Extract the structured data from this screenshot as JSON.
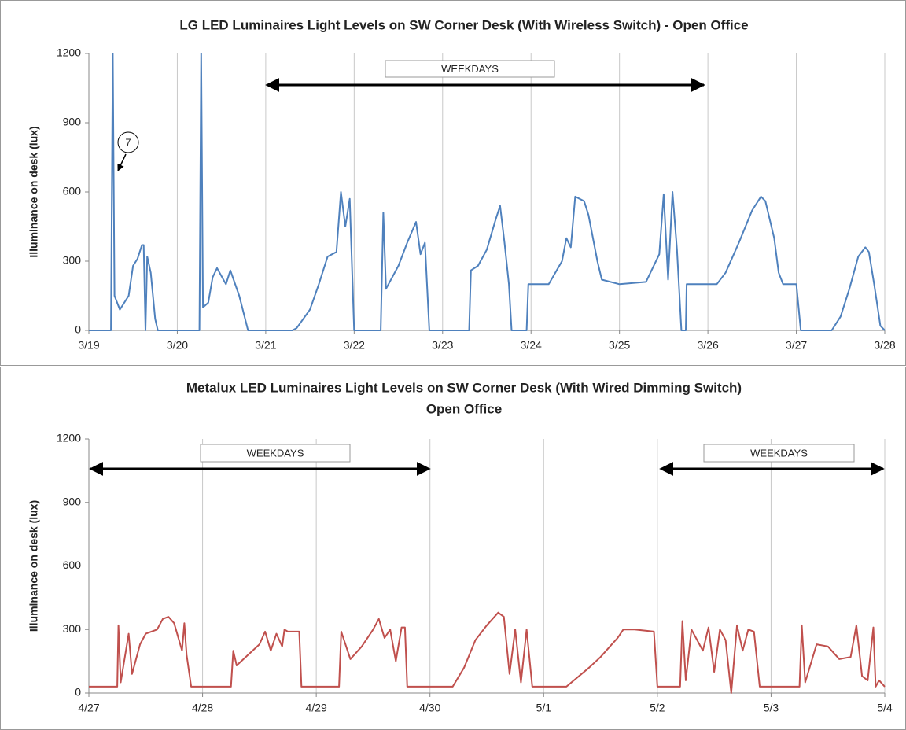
{
  "chart_data": [
    {
      "type": "line",
      "title": [
        "LG LED Luminaires Light Levels on SW Corner Desk (With Wireless Switch) - Open Office"
      ],
      "y_label": "Illuminance on desk (lux)",
      "color": "#4f81bd",
      "x": [
        0,
        0.25,
        0.27,
        0.29,
        0.35,
        0.45,
        0.5,
        0.55,
        0.6,
        0.62,
        0.64,
        0.66,
        0.7,
        0.75,
        0.78,
        1.25,
        1.27,
        1.29,
        1.35,
        1.4,
        1.45,
        1.55,
        1.6,
        1.7,
        1.8,
        2.3,
        2.35,
        2.5,
        2.6,
        2.7,
        2.8,
        2.85,
        2.9,
        2.95,
        3.0,
        3.3,
        3.33,
        3.36,
        3.5,
        3.6,
        3.7,
        3.75,
        3.8,
        3.85,
        4.3,
        4.32,
        4.4,
        4.5,
        4.6,
        4.65,
        4.7,
        4.75,
        4.78,
        4.95,
        4.97,
        5.2,
        5.35,
        5.4,
        5.45,
        5.5,
        5.6,
        5.65,
        5.75,
        5.8,
        6.0,
        6.3,
        6.45,
        6.5,
        6.55,
        6.6,
        6.65,
        6.7,
        6.75,
        6.76,
        7.1,
        7.2,
        7.35,
        7.5,
        7.6,
        7.65,
        7.75,
        7.8,
        7.85,
        8.0,
        8.05,
        8.4,
        8.5,
        8.6,
        8.7,
        8.78,
        8.82,
        8.88,
        8.95,
        9.0
      ],
      "values": [
        0,
        0,
        1200,
        150,
        90,
        150,
        280,
        310,
        370,
        370,
        0,
        320,
        250,
        50,
        0,
        0,
        1200,
        100,
        120,
        230,
        270,
        200,
        260,
        150,
        0,
        0,
        10,
        90,
        200,
        320,
        340,
        600,
        450,
        570,
        0,
        0,
        510,
        180,
        280,
        380,
        470,
        330,
        380,
        0,
        0,
        260,
        280,
        350,
        480,
        540,
        380,
        200,
        0,
        0,
        200,
        200,
        300,
        400,
        360,
        580,
        560,
        500,
        300,
        220,
        200,
        210,
        330,
        590,
        220,
        600,
        350,
        0,
        0,
        200,
        200,
        250,
        380,
        520,
        580,
        560,
        400,
        250,
        200,
        200,
        0,
        0,
        60,
        180,
        320,
        360,
        340,
        200,
        20,
        0
      ],
      "xlim": [
        0,
        9
      ],
      "xticks": [
        {
          "value": 0,
          "label": "3/19"
        },
        {
          "value": 1,
          "label": "3/20"
        },
        {
          "value": 2,
          "label": "3/21"
        },
        {
          "value": 3,
          "label": "3/22"
        },
        {
          "value": 4,
          "label": "3/23"
        },
        {
          "value": 5,
          "label": "3/24"
        },
        {
          "value": 6,
          "label": "3/25"
        },
        {
          "value": 7,
          "label": "3/26"
        },
        {
          "value": 8,
          "label": "3/27"
        },
        {
          "value": 9,
          "label": "3/28"
        }
      ],
      "ylim": [
        0,
        1200
      ],
      "yticks": [
        0,
        300,
        600,
        900,
        1200
      ],
      "annotations": [
        "WEEKDAYS",
        "7"
      ]
    },
    {
      "type": "line",
      "title": [
        "Metalux LED Luminaires Light Levels on SW Corner Desk (With Wired Dimming Switch)",
        "Open Office"
      ],
      "y_label": "Illuminance on desk (lux)",
      "color": "#c0504d",
      "x": [
        0,
        0.25,
        0.26,
        0.28,
        0.35,
        0.38,
        0.45,
        0.5,
        0.6,
        0.65,
        0.7,
        0.75,
        0.82,
        0.84,
        0.86,
        0.9,
        1.0,
        1.25,
        1.27,
        1.3,
        1.4,
        1.5,
        1.55,
        1.6,
        1.65,
        1.7,
        1.72,
        1.75,
        1.85,
        1.87,
        2.2,
        2.22,
        2.3,
        2.4,
        2.5,
        2.55,
        2.6,
        2.65,
        2.7,
        2.75,
        2.78,
        2.8,
        3.0,
        3.2,
        3.3,
        3.4,
        3.5,
        3.6,
        3.65,
        3.7,
        3.75,
        3.8,
        3.85,
        3.9,
        4.2,
        4.4,
        4.5,
        4.6,
        4.65,
        4.7,
        4.8,
        4.97,
        5.0,
        5.2,
        5.22,
        5.25,
        5.3,
        5.4,
        5.45,
        5.5,
        5.55,
        5.6,
        5.65,
        5.7,
        5.75,
        5.8,
        5.85,
        5.9,
        6.25,
        6.27,
        6.3,
        6.4,
        6.5,
        6.6,
        6.7,
        6.75,
        6.8,
        6.85,
        6.9,
        6.92,
        6.95,
        7.0
      ],
      "values": [
        30,
        30,
        320,
        50,
        280,
        90,
        230,
        280,
        300,
        350,
        360,
        330,
        200,
        330,
        180,
        30,
        30,
        30,
        200,
        130,
        180,
        230,
        290,
        200,
        280,
        220,
        300,
        290,
        290,
        30,
        30,
        290,
        160,
        220,
        300,
        350,
        260,
        300,
        150,
        310,
        310,
        30,
        30,
        30,
        120,
        250,
        320,
        380,
        360,
        90,
        300,
        50,
        300,
        30,
        30,
        120,
        170,
        230,
        260,
        300,
        300,
        290,
        30,
        30,
        340,
        60,
        300,
        200,
        310,
        100,
        300,
        250,
        0,
        320,
        200,
        300,
        290,
        30,
        30,
        320,
        50,
        230,
        220,
        160,
        170,
        320,
        80,
        60,
        310,
        30,
        60,
        30
      ],
      "xlim": [
        0,
        7
      ],
      "xticks": [
        {
          "value": 0,
          "label": "4/27"
        },
        {
          "value": 1,
          "label": "4/28"
        },
        {
          "value": 2,
          "label": "4/29"
        },
        {
          "value": 3,
          "label": "4/30"
        },
        {
          "value": 4,
          "label": "5/1"
        },
        {
          "value": 5,
          "label": "5/2"
        },
        {
          "value": 6,
          "label": "5/3"
        },
        {
          "value": 7,
          "label": "5/4"
        }
      ],
      "ylim": [
        0,
        1200
      ],
      "yticks": [
        0,
        300,
        600,
        900,
        1200
      ],
      "annotations": [
        "WEEKDAYS",
        "WEEKDAYS"
      ]
    }
  ]
}
